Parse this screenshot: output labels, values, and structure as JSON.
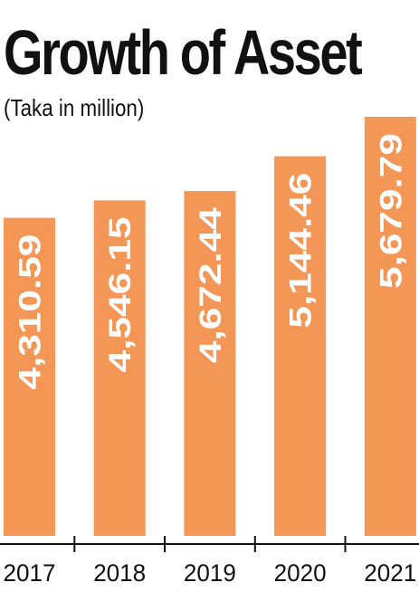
{
  "title": "Growth of Asset",
  "subtitle": "(Taka in million)",
  "chart_data": {
    "type": "bar",
    "title": "Growth of Asset",
    "subtitle": "(Taka in million)",
    "categories": [
      "2017",
      "2018",
      "2019",
      "2020",
      "2021"
    ],
    "values": [
      4310.59,
      4546.15,
      4672.44,
      5144.46,
      5679.79
    ],
    "value_labels": [
      "4,310.59",
      "4,546.15",
      "4,672.44",
      "5,144.46",
      "5,679.79"
    ],
    "value_label_orientation": "vertical",
    "xlabel": "",
    "ylabel": "",
    "grid": false,
    "legend": "none",
    "bar_color": "#F39656",
    "label_color": "#FFFFFF",
    "axis_color": "#111111"
  }
}
